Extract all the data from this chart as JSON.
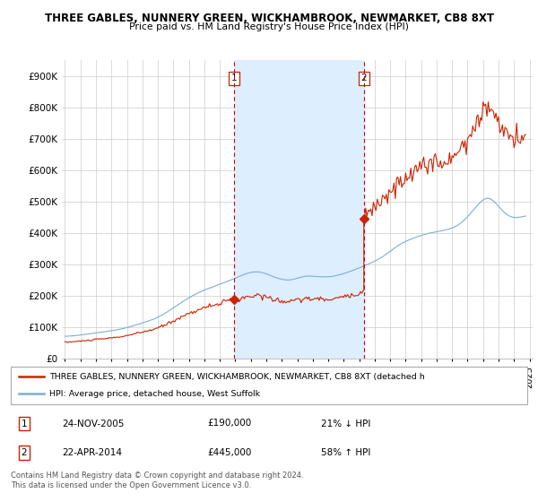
{
  "title": "THREE GABLES, NUNNERY GREEN, WICKHAMBROOK, NEWMARKET, CB8 8XT",
  "subtitle": "Price paid vs. HM Land Registry's House Price Index (HPI)",
  "ylim": [
    0,
    950000
  ],
  "yticks": [
    0,
    100000,
    200000,
    300000,
    400000,
    500000,
    600000,
    700000,
    800000,
    900000
  ],
  "ytick_labels": [
    "£0",
    "£100K",
    "£200K",
    "£300K",
    "£400K",
    "£500K",
    "£600K",
    "£700K",
    "£800K",
    "£900K"
  ],
  "hpi_color": "#7aaed6",
  "price_color": "#cc2200",
  "vline_color": "#cc0000",
  "grid_color": "#cccccc",
  "bg_color": "#ffffff",
  "shade_color": "#ddeeff",
  "legend_text_1": "THREE GABLES, NUNNERY GREEN, WICKHAMBROOK, NEWMARKET, CB8 8XT (detached h",
  "legend_text_2": "HPI: Average price, detached house, West Suffolk",
  "sale1_date": "24-NOV-2005",
  "sale1_price": "£190,000",
  "sale1_hpi": "21% ↓ HPI",
  "sale2_date": "22-APR-2014",
  "sale2_price": "£445,000",
  "sale2_hpi": "58% ↑ HPI",
  "footnote": "Contains HM Land Registry data © Crown copyright and database right 2024.\nThis data is licensed under the Open Government Licence v3.0.",
  "sale1_x": 2005.92,
  "sale1_y": 190000,
  "sale2_x": 2014.3,
  "sale2_y": 445000,
  "xlim_left": 1994.8,
  "xlim_right": 2025.2
}
